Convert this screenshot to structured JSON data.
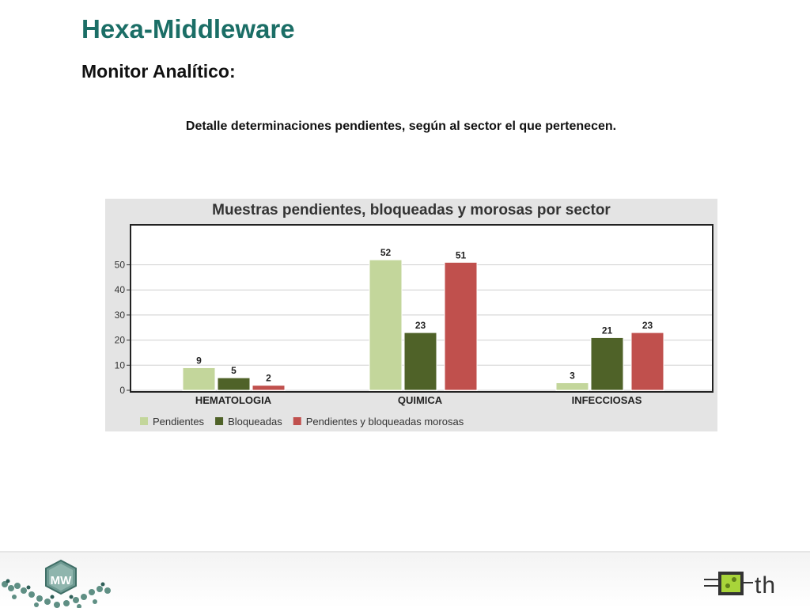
{
  "header": {
    "title": "Hexa-Middleware",
    "subtitle": "Monitor Analítico:",
    "caption": "Detalle determinaciones pendientes, según al sector el que pertenecen."
  },
  "chart_data": {
    "type": "bar",
    "title": "Muestras pendientes, bloqueadas y morosas por sector",
    "categories": [
      "HEMATOLOGIA",
      "QUIMICA",
      "INFECCIOSAS"
    ],
    "series": [
      {
        "name": "Pendientes",
        "color": "#c3d69b",
        "values": [
          9,
          52,
          3
        ]
      },
      {
        "name": "Bloqueadas",
        "color": "#4f6228",
        "values": [
          5,
          23,
          21
        ]
      },
      {
        "name": "Pendientes y bloqueadas morosas",
        "color": "#c0504d",
        "values": [
          2,
          51,
          23
        ]
      }
    ],
    "yticks": [
      0,
      10,
      20,
      30,
      40,
      50
    ],
    "ylim": [
      0,
      63
    ],
    "grid": true,
    "legend": "bottom-left"
  },
  "footer": {
    "left_logo_text": "MW",
    "right_logo_text": "th"
  }
}
